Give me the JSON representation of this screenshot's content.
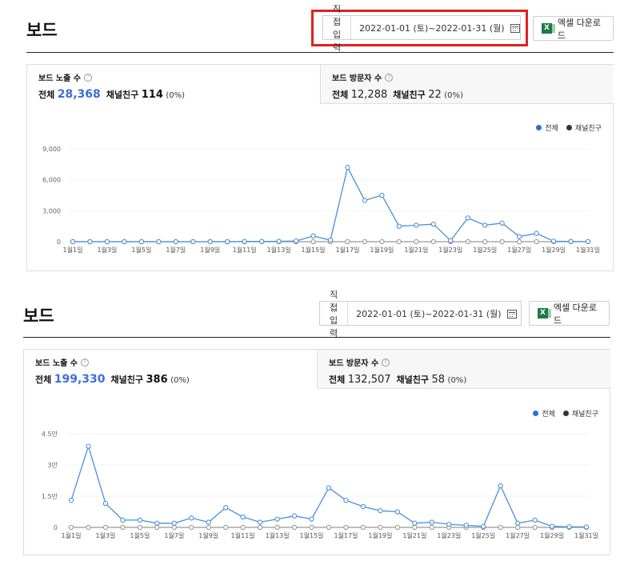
{
  "panels": [
    {
      "title": "보드",
      "date_mode": "직접 입력",
      "date_range": "2022-01-01 (토)~2022-01-31 (월)",
      "excel_label": "엑셀 다운로드",
      "tabs": [
        {
          "label": "보드 노출 수",
          "help": "?",
          "total_label": "전체",
          "total": "28,368",
          "friend_label": "채널친구",
          "friend": "114",
          "friend_pct": "(0%)",
          "active": true
        },
        {
          "label": "보드 방문자 수",
          "help": "?",
          "total_label": "전체",
          "total": "12,288",
          "friend_label": "채널친구",
          "friend": "22",
          "friend_pct": "(0%)",
          "active": false
        }
      ],
      "legend": {
        "total": "전체",
        "friends": "채널친구"
      },
      "chart_data": {
        "type": "line",
        "x": [
          "1월1일",
          "1월2일",
          "1월3일",
          "1월4일",
          "1월5일",
          "1월6일",
          "1월7일",
          "1월8일",
          "1월9일",
          "1월10일",
          "1월11일",
          "1월12일",
          "1월13일",
          "1월14일",
          "1월15일",
          "1월16일",
          "1월17일",
          "1월18일",
          "1월19일",
          "1월20일",
          "1월21일",
          "1월22일",
          "1월23일",
          "1월24일",
          "1월25일",
          "1월26일",
          "1월27일",
          "1월28일",
          "1월29일",
          "1월30일",
          "1월31일"
        ],
        "x_ticks": [
          "1월1일",
          "1월3일",
          "1월5일",
          "1월7일",
          "1월9일",
          "1월11일",
          "1월13일",
          "1월15일",
          "1월17일",
          "1월19일",
          "1월21일",
          "1월23일",
          "1월25일",
          "1월27일",
          "1월29일",
          "1월31일"
        ],
        "y_ticks": [
          "0",
          "3,000",
          "6,000",
          "9,000"
        ],
        "ylim": [
          0,
          9000
        ],
        "series": [
          {
            "name": "전체",
            "color": "#4a90d9",
            "values": [
              0,
              0,
              0,
              0,
              0,
              0,
              0,
              0,
              0,
              0,
              20,
              30,
              30,
              70,
              550,
              150,
              7200,
              4000,
              4500,
              1500,
              1600,
              1700,
              100,
              2300,
              1600,
              1800,
              500,
              800,
              50,
              20,
              10
            ]
          },
          {
            "name": "채널친구",
            "color": "#999999",
            "values": [
              0,
              0,
              0,
              0,
              0,
              0,
              0,
              0,
              0,
              0,
              0,
              0,
              0,
              0,
              0,
              0,
              0,
              0,
              0,
              0,
              0,
              0,
              0,
              0,
              0,
              0,
              0,
              0,
              0,
              0,
              0
            ]
          }
        ]
      }
    },
    {
      "title": "보드",
      "date_mode": "직접 입력",
      "date_range": "2022-01-01 (토)~2022-01-31 (월)",
      "excel_label": "엑셀 다운로드",
      "tabs": [
        {
          "label": "보드 노출 수",
          "help": "?",
          "total_label": "전체",
          "total": "199,330",
          "friend_label": "채널친구",
          "friend": "386",
          "friend_pct": "(0%)",
          "active": true
        },
        {
          "label": "보드 방문자 수",
          "help": "?",
          "total_label": "전체",
          "total": "132,507",
          "friend_label": "채널친구",
          "friend": "58",
          "friend_pct": "(0%)",
          "active": false
        }
      ],
      "legend": {
        "total": "전체",
        "friends": "채널친구"
      },
      "chart_data": {
        "type": "line",
        "x": [
          "1월1일",
          "1월2일",
          "1월3일",
          "1월4일",
          "1월5일",
          "1월6일",
          "1월7일",
          "1월8일",
          "1월9일",
          "1월10일",
          "1월11일",
          "1월12일",
          "1월13일",
          "1월14일",
          "1월15일",
          "1월16일",
          "1월17일",
          "1월18일",
          "1월19일",
          "1월20일",
          "1월21일",
          "1월22일",
          "1월23일",
          "1월24일",
          "1월25일",
          "1월26일",
          "1월27일",
          "1월28일",
          "1월29일",
          "1월30일",
          "1월31일"
        ],
        "x_ticks": [
          "1월1일",
          "1월3일",
          "1월5일",
          "1월7일",
          "1월9일",
          "1월11일",
          "1월13일",
          "1월15일",
          "1월17일",
          "1월19일",
          "1월21일",
          "1월23일",
          "1월25일",
          "1월27일",
          "1월29일",
          "1월31일"
        ],
        "y_ticks": [
          "0",
          "1.5만",
          "3만",
          "4.5만"
        ],
        "ylim": [
          0,
          45000
        ],
        "series": [
          {
            "name": "전체",
            "color": "#4a90d9",
            "values": [
              13000,
              39000,
              11500,
              3500,
              3500,
              2000,
              2000,
              4500,
              2500,
              9500,
              5000,
              2500,
              4000,
              5500,
              4000,
              19000,
              13000,
              10000,
              8000,
              7500,
              2000,
              2500,
              1500,
              1000,
              500,
              20000,
              2000,
              3500,
              500,
              300,
              200
            ]
          },
          {
            "name": "채널친구",
            "color": "#999999",
            "values": [
              0,
              0,
              0,
              0,
              0,
              0,
              0,
              0,
              0,
              0,
              0,
              0,
              0,
              0,
              0,
              0,
              0,
              0,
              0,
              0,
              0,
              0,
              0,
              0,
              0,
              0,
              0,
              0,
              0,
              0,
              0
            ]
          }
        ]
      }
    }
  ]
}
